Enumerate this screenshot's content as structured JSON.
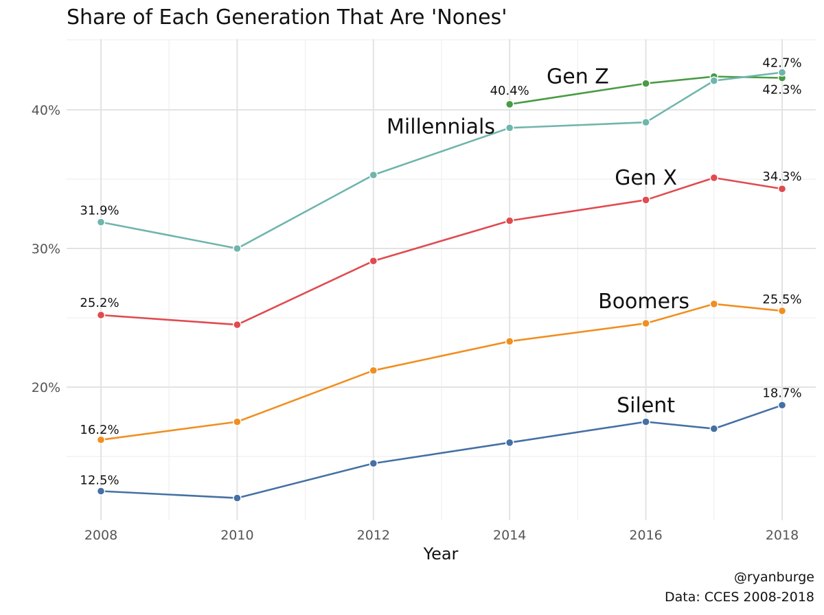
{
  "chart_data": {
    "type": "line",
    "title": "Share of Each Generation That Are 'Nones'",
    "xlabel": "Year",
    "ylabel": "",
    "x_ticks": [
      "2008",
      "2010",
      "2012",
      "2014",
      "2016",
      "2018"
    ],
    "y_ticks": [
      "20%",
      "30%",
      "40%"
    ],
    "xlim": [
      2008,
      2018
    ],
    "ylim": [
      11.5,
      44.5
    ],
    "grid": true,
    "legend": "none (direct series labels)",
    "series": [
      {
        "name": "Gen Z",
        "color": "#4a9b45",
        "points": [
          [
            2014,
            40.4
          ],
          [
            2016,
            41.9
          ],
          [
            2017,
            42.4
          ],
          [
            2018,
            42.3
          ]
        ]
      },
      {
        "name": "Millennials",
        "color": "#6fb5ac",
        "points": [
          [
            2008,
            31.9
          ],
          [
            2010,
            30.0
          ],
          [
            2012,
            35.3
          ],
          [
            2014,
            38.7
          ],
          [
            2016,
            39.1
          ],
          [
            2017,
            42.1
          ],
          [
            2018,
            42.7
          ]
        ]
      },
      {
        "name": "Gen X",
        "color": "#e04b4f",
        "points": [
          [
            2008,
            25.2
          ],
          [
            2010,
            24.5
          ],
          [
            2012,
            29.1
          ],
          [
            2014,
            32.0
          ],
          [
            2016,
            33.5
          ],
          [
            2017,
            35.1
          ],
          [
            2018,
            34.3
          ]
        ]
      },
      {
        "name": "Boomers",
        "color": "#f08f20",
        "points": [
          [
            2008,
            16.2
          ],
          [
            2010,
            17.5
          ],
          [
            2012,
            21.2
          ],
          [
            2014,
            23.3
          ],
          [
            2016,
            24.6
          ],
          [
            2017,
            26.0
          ],
          [
            2018,
            25.5
          ]
        ]
      },
      {
        "name": "Silent",
        "color": "#4570a4",
        "points": [
          [
            2008,
            12.5
          ],
          [
            2010,
            12.0
          ],
          [
            2012,
            14.5
          ],
          [
            2014,
            16.0
          ],
          [
            2016,
            17.5
          ],
          [
            2017,
            17.0
          ],
          [
            2018,
            18.7
          ]
        ]
      }
    ],
    "data_labels": [
      {
        "text": "40.4%",
        "x": 2014,
        "y": 40.4
      },
      {
        "text": "42.7%",
        "x": 2018,
        "y": 42.7
      },
      {
        "text": "42.3%",
        "x": 2018,
        "y": 42.3
      },
      {
        "text": "31.9%",
        "x": 2008,
        "y": 31.9
      },
      {
        "text": "34.3%",
        "x": 2018,
        "y": 34.3
      },
      {
        "text": "25.2%",
        "x": 2008,
        "y": 25.2
      },
      {
        "text": "25.5%",
        "x": 2018,
        "y": 25.5
      },
      {
        "text": "16.2%",
        "x": 2008,
        "y": 16.2
      },
      {
        "text": "18.7%",
        "x": 2018,
        "y": 18.7
      },
      {
        "text": "12.5%",
        "x": 2008,
        "y": 12.5
      }
    ],
    "series_labels": [
      {
        "text": "Gen Z",
        "x": 2015.0,
        "y": 41.9
      },
      {
        "text": "Millennials",
        "x": 2013.0,
        "y": 38.3
      },
      {
        "text": "Gen X",
        "x": 2016.0,
        "y": 34.6
      },
      {
        "text": "Boomers",
        "x": 2016.0,
        "y": 25.7
      },
      {
        "text": "Silent",
        "x": 2016.0,
        "y": 18.2
      }
    ],
    "caption": [
      "@ryanburge",
      "Data: CCES 2008-2018"
    ]
  }
}
